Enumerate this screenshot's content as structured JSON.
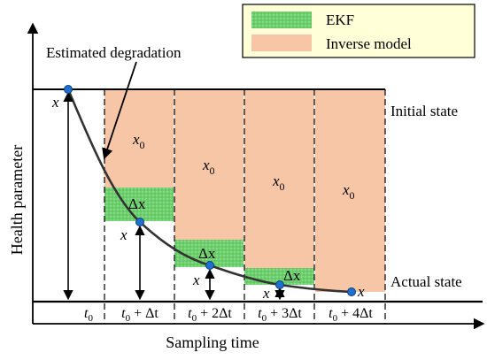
{
  "legend": {
    "items": [
      {
        "label": "EKF",
        "color": "#6ecf6e"
      },
      {
        "label": "Inverse model",
        "color": "#f7c6a6"
      }
    ]
  },
  "axes": {
    "ylabel": "Health parameter",
    "xlabel": "Sampling time"
  },
  "annotations": {
    "estimated": "Estimated degradation",
    "initial_state": "Initial state",
    "actual_state": "Actual state"
  },
  "ticks": [
    {
      "base": "t",
      "sub": "0",
      "suffix": ""
    },
    {
      "base": "t",
      "sub": "0",
      "suffix": " + Δt"
    },
    {
      "base": "t",
      "sub": "0",
      "suffix": " + 2Δt"
    },
    {
      "base": "t",
      "sub": "0",
      "suffix": " + 3Δt"
    },
    {
      "base": "t",
      "sub": "0",
      "suffix": " + 4Δt"
    }
  ],
  "symbols": {
    "x": "x",
    "x0_base": "x",
    "x0_sub": "0",
    "delta_x": "Δx"
  },
  "colors": {
    "curve": "#333333",
    "point": "#1f6fd1",
    "ekf": "#6ecf6e",
    "inverse": "#f7c6a6"
  }
}
